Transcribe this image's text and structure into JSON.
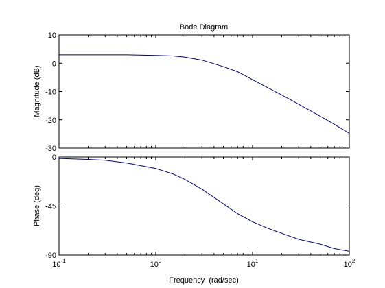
{
  "chart_data": [
    {
      "type": "line",
      "title": "Bode Diagram",
      "ylabel": "Magnitude (dB)",
      "xlabel": "",
      "xscale": "log",
      "xlim": [
        0.1,
        100
      ],
      "ylim": [
        -30,
        10
      ],
      "yticks": [
        "10",
        "0",
        "-10",
        "-20",
        "-30"
      ],
      "grid": false,
      "line_color": "#00007f",
      "series": [
        {
          "x": [
            0.1,
            0.2,
            0.5,
            1,
            1.5,
            2,
            3,
            5,
            7,
            10,
            20,
            30,
            50,
            70,
            100
          ],
          "y": [
            3.0,
            3.0,
            3.0,
            2.8,
            2.6,
            2.2,
            1.1,
            -1.2,
            -3.0,
            -5.8,
            -11.2,
            -14.5,
            -18.7,
            -21.6,
            -24.8
          ]
        }
      ]
    },
    {
      "type": "line",
      "title": "",
      "ylabel": "Phase (deg)",
      "xlabel": "Frequency  (rad/sec)",
      "xscale": "log",
      "xlim": [
        0.1,
        100
      ],
      "ylim": [
        -90,
        0
      ],
      "yticks": [
        "0",
        "-45",
        "-90"
      ],
      "xticks": [
        {
          "base": "10",
          "exp": "-1"
        },
        {
          "base": "10",
          "exp": "0"
        },
        {
          "base": "10",
          "exp": "1"
        },
        {
          "base": "10",
          "exp": "2"
        }
      ],
      "grid": false,
      "line_color": "#00007f",
      "series": [
        {
          "x": [
            0.1,
            0.2,
            0.3,
            0.5,
            1,
            1.5,
            2,
            3,
            5,
            7,
            10,
            15,
            20,
            30,
            50,
            70,
            100
          ],
          "y": [
            -1.3,
            -2.2,
            -3.0,
            -5.5,
            -10.5,
            -15.5,
            -20.5,
            -29.5,
            -43.0,
            -52.0,
            -59.5,
            -66.0,
            -70.0,
            -75.5,
            -80.0,
            -84.0,
            -86.5
          ]
        }
      ]
    }
  ]
}
